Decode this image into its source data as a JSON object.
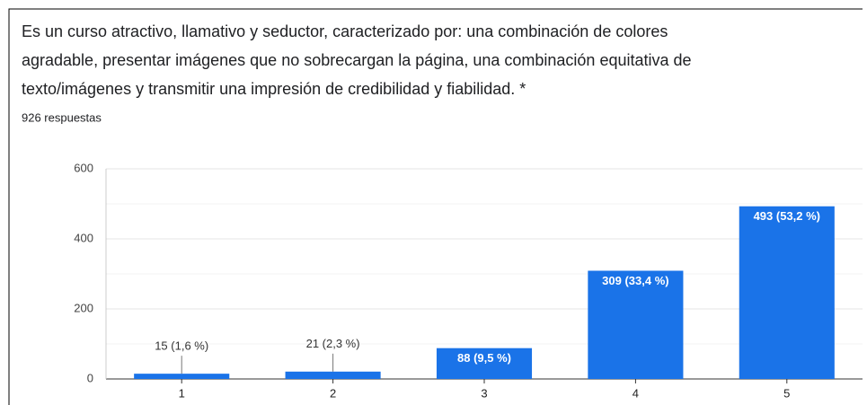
{
  "chart_data": {
    "type": "bar",
    "title": [
      "Es un curso atractivo, llamativo y seductor, caracterizado por: una combinación de colores",
      "agradable, presentar imágenes que no sobrecargan la página, una combinación equitativa de",
      "texto/imágenes y transmitir una impresión de credibilidad y fiabilidad. *"
    ],
    "subtitle": "926 respuestas",
    "categories": [
      "1",
      "2",
      "3",
      "4",
      "5"
    ],
    "values": [
      15,
      21,
      88,
      309,
      493
    ],
    "value_labels": [
      "15 (1,6 %)",
      "21 (2,3 %)",
      "88 (9,5 %)",
      "309 (33,4 %)",
      "493 (53,2 %)"
    ],
    "color": "#1a73e8",
    "ylim": [
      0,
      600
    ],
    "yticks": [
      0,
      200,
      400,
      600
    ],
    "minor_yticks": [
      100,
      300,
      500
    ],
    "grid": true
  }
}
